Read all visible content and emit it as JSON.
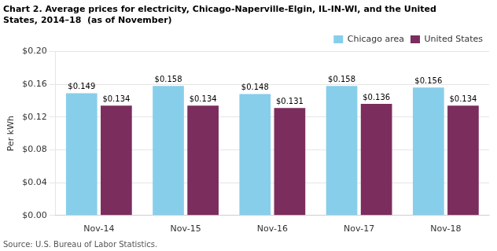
{
  "chart_data": {
    "type": "bar",
    "title": [
      "Chart 2. Average prices for electricity, Chicago-Naperville-Elgin, IL-IN-WI, and the United",
      "States, 2014–18  (as of November)"
    ],
    "ylabel": "Per kWh",
    "source": "Source: U.S. Bureau of Labor Statistics.",
    "categories": [
      "Nov-14",
      "Nov-15",
      "Nov-16",
      "Nov-17",
      "Nov-18"
    ],
    "series": [
      {
        "name": "Chicago area",
        "color": "#87CEEB",
        "values": [
          0.149,
          0.158,
          0.148,
          0.158,
          0.156
        ],
        "value_labels": [
          "$0.149",
          "$0.158",
          "$0.148",
          "$0.158",
          "$0.156"
        ]
      },
      {
        "name": "United States",
        "color": "#7B2D5E",
        "values": [
          0.134,
          0.134,
          0.131,
          0.136,
          0.134
        ],
        "value_labels": [
          "$0.134",
          "$0.134",
          "$0.131",
          "$0.136",
          "$0.134"
        ]
      }
    ],
    "ylim": [
      0,
      0.2
    ],
    "yticks": [
      {
        "value": 0.0,
        "label": "$0.00"
      },
      {
        "value": 0.04,
        "label": "$0.04"
      },
      {
        "value": 0.08,
        "label": "$0.08"
      },
      {
        "value": 0.12,
        "label": "$0.12"
      },
      {
        "value": 0.16,
        "label": "$0.16"
      },
      {
        "value": 0.2,
        "label": "$0.20"
      }
    ],
    "grid": "y",
    "legend": "top right",
    "data_labels": true
  }
}
